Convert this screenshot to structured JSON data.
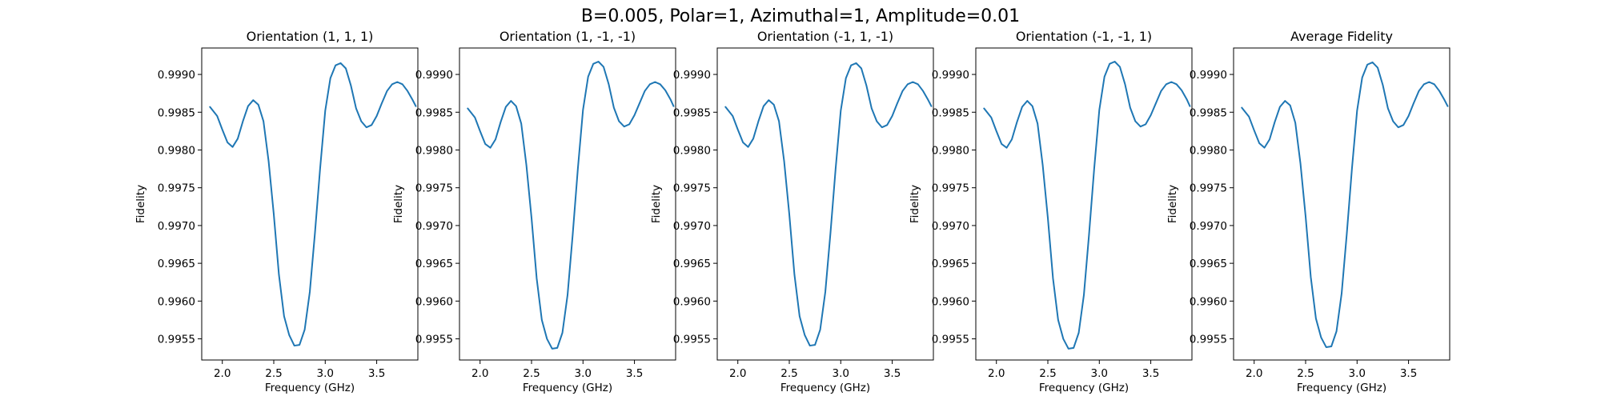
{
  "figure": {
    "title": "B=0.005, Polar=1, Azimuthal=1, Amplitude=0.01"
  },
  "colors": {
    "line": "#1f77b4",
    "axes": "#000000",
    "background": "#ffffff"
  },
  "chart_data": [
    {
      "type": "line",
      "title": "Orientation (1, 1, 1)",
      "xlabel": "Frequency (GHz)",
      "ylabel": "Fidelity",
      "xlim": [
        1.8,
        3.9
      ],
      "ylim": [
        0.99522,
        0.99935
      ],
      "xticks": [
        2.0,
        2.5,
        3.0,
        3.5
      ],
      "xtick_labels": [
        "2.0",
        "2.5",
        "3.0",
        "3.5"
      ],
      "yticks": [
        0.9955,
        0.996,
        0.9965,
        0.997,
        0.9975,
        0.998,
        0.9985,
        0.999
      ],
      "ytick_labels": [
        "0.9955",
        "0.9960",
        "0.9965",
        "0.9970",
        "0.9975",
        "0.9980",
        "0.9985",
        "0.9990"
      ],
      "grid": false,
      "legend": "none",
      "series": [
        {
          "x": [
            1.88,
            1.95,
            2.0,
            2.05,
            2.1,
            2.15,
            2.2,
            2.25,
            2.3,
            2.35,
            2.4,
            2.45,
            2.5,
            2.55,
            2.6,
            2.65,
            2.7,
            2.75,
            2.8,
            2.85,
            2.9,
            2.95,
            3.0,
            3.05,
            3.1,
            3.15,
            3.2,
            3.25,
            3.3,
            3.35,
            3.4,
            3.45,
            3.5,
            3.55,
            3.6,
            3.65,
            3.7,
            3.75,
            3.8,
            3.85,
            3.88
          ],
          "y": [
            0.99857,
            0.99845,
            0.99827,
            0.9981,
            0.99804,
            0.99815,
            0.99838,
            0.99858,
            0.99866,
            0.9986,
            0.99838,
            0.99785,
            0.99715,
            0.99635,
            0.9958,
            0.99555,
            0.99541,
            0.99542,
            0.99562,
            0.99612,
            0.9969,
            0.99775,
            0.99852,
            0.99895,
            0.99912,
            0.99915,
            0.99908,
            0.99885,
            0.99855,
            0.99838,
            0.9983,
            0.99833,
            0.99845,
            0.99862,
            0.99878,
            0.99887,
            0.9989,
            0.99887,
            0.99878,
            0.99866,
            0.99858
          ]
        }
      ]
    },
    {
      "type": "line",
      "title": "Orientation (1, -1, -1)",
      "xlabel": "Frequency (GHz)",
      "ylabel": "Fidelity",
      "xlim": [
        1.8,
        3.9
      ],
      "ylim": [
        0.99522,
        0.99935
      ],
      "xticks": [
        2.0,
        2.5,
        3.0,
        3.5
      ],
      "xtick_labels": [
        "2.0",
        "2.5",
        "3.0",
        "3.5"
      ],
      "yticks": [
        0.9955,
        0.996,
        0.9965,
        0.997,
        0.9975,
        0.998,
        0.9985,
        0.999
      ],
      "ytick_labels": [
        "0.9955",
        "0.9960",
        "0.9965",
        "0.9970",
        "0.9975",
        "0.9980",
        "0.9985",
        "0.9990"
      ],
      "grid": false,
      "legend": "none",
      "series": [
        {
          "x": [
            1.88,
            1.95,
            2.0,
            2.05,
            2.1,
            2.15,
            2.2,
            2.25,
            2.3,
            2.35,
            2.4,
            2.45,
            2.5,
            2.55,
            2.6,
            2.65,
            2.7,
            2.75,
            2.8,
            2.85,
            2.9,
            2.95,
            3.0,
            3.05,
            3.1,
            3.15,
            3.2,
            3.25,
            3.3,
            3.35,
            3.4,
            3.45,
            3.5,
            3.55,
            3.6,
            3.65,
            3.7,
            3.75,
            3.8,
            3.85,
            3.88
          ],
          "y": [
            0.99855,
            0.99843,
            0.99825,
            0.99808,
            0.99803,
            0.99814,
            0.99837,
            0.99857,
            0.99865,
            0.99858,
            0.99835,
            0.9978,
            0.9971,
            0.9963,
            0.99575,
            0.9955,
            0.99537,
            0.99538,
            0.99558,
            0.99608,
            0.99688,
            0.99775,
            0.99853,
            0.99897,
            0.99914,
            0.99917,
            0.9991,
            0.99887,
            0.99856,
            0.99838,
            0.99831,
            0.99834,
            0.99846,
            0.99862,
            0.99878,
            0.99887,
            0.9989,
            0.99887,
            0.99879,
            0.99867,
            0.99858
          ]
        }
      ]
    },
    {
      "type": "line",
      "title": "Orientation (-1, 1, -1)",
      "xlabel": "Frequency (GHz)",
      "ylabel": "Fidelity",
      "xlim": [
        1.8,
        3.9
      ],
      "ylim": [
        0.99522,
        0.99935
      ],
      "xticks": [
        2.0,
        2.5,
        3.0,
        3.5
      ],
      "xtick_labels": [
        "2.0",
        "2.5",
        "3.0",
        "3.5"
      ],
      "yticks": [
        0.9955,
        0.996,
        0.9965,
        0.997,
        0.9975,
        0.998,
        0.9985,
        0.999
      ],
      "ytick_labels": [
        "0.9955",
        "0.9960",
        "0.9965",
        "0.9970",
        "0.9975",
        "0.9980",
        "0.9985",
        "0.9990"
      ],
      "grid": false,
      "legend": "none",
      "series": [
        {
          "x": [
            1.88,
            1.95,
            2.0,
            2.05,
            2.1,
            2.15,
            2.2,
            2.25,
            2.3,
            2.35,
            2.4,
            2.45,
            2.5,
            2.55,
            2.6,
            2.65,
            2.7,
            2.75,
            2.8,
            2.85,
            2.9,
            2.95,
            3.0,
            3.05,
            3.1,
            3.15,
            3.2,
            3.25,
            3.3,
            3.35,
            3.4,
            3.45,
            3.5,
            3.55,
            3.6,
            3.65,
            3.7,
            3.75,
            3.8,
            3.85,
            3.88
          ],
          "y": [
            0.99857,
            0.99845,
            0.99827,
            0.9981,
            0.99804,
            0.99815,
            0.99838,
            0.99858,
            0.99866,
            0.9986,
            0.99838,
            0.99785,
            0.99715,
            0.99635,
            0.9958,
            0.99555,
            0.99541,
            0.99542,
            0.99562,
            0.99612,
            0.9969,
            0.99775,
            0.99852,
            0.99895,
            0.99912,
            0.99915,
            0.99908,
            0.99885,
            0.99855,
            0.99838,
            0.9983,
            0.99833,
            0.99845,
            0.99862,
            0.99878,
            0.99887,
            0.9989,
            0.99887,
            0.99878,
            0.99866,
            0.99858
          ]
        }
      ]
    },
    {
      "type": "line",
      "title": "Orientation (-1, -1, 1)",
      "xlabel": "Frequency (GHz)",
      "ylabel": "Fidelity",
      "xlim": [
        1.8,
        3.9
      ],
      "ylim": [
        0.99522,
        0.99935
      ],
      "xticks": [
        2.0,
        2.5,
        3.0,
        3.5
      ],
      "xtick_labels": [
        "2.0",
        "2.5",
        "3.0",
        "3.5"
      ],
      "yticks": [
        0.9955,
        0.996,
        0.9965,
        0.997,
        0.9975,
        0.998,
        0.9985,
        0.999
      ],
      "ytick_labels": [
        "0.9955",
        "0.9960",
        "0.9965",
        "0.9970",
        "0.9975",
        "0.9980",
        "0.9985",
        "0.9990"
      ],
      "grid": false,
      "legend": "none",
      "series": [
        {
          "x": [
            1.88,
            1.95,
            2.0,
            2.05,
            2.1,
            2.15,
            2.2,
            2.25,
            2.3,
            2.35,
            2.4,
            2.45,
            2.5,
            2.55,
            2.6,
            2.65,
            2.7,
            2.75,
            2.8,
            2.85,
            2.9,
            2.95,
            3.0,
            3.05,
            3.1,
            3.15,
            3.2,
            3.25,
            3.3,
            3.35,
            3.4,
            3.45,
            3.5,
            3.55,
            3.6,
            3.65,
            3.7,
            3.75,
            3.8,
            3.85,
            3.88
          ],
          "y": [
            0.99855,
            0.99843,
            0.99825,
            0.99808,
            0.99803,
            0.99814,
            0.99837,
            0.99857,
            0.99865,
            0.99858,
            0.99835,
            0.9978,
            0.9971,
            0.9963,
            0.99575,
            0.9955,
            0.99537,
            0.99538,
            0.99558,
            0.99608,
            0.99688,
            0.99775,
            0.99853,
            0.99897,
            0.99914,
            0.99917,
            0.9991,
            0.99887,
            0.99856,
            0.99838,
            0.99831,
            0.99834,
            0.99846,
            0.99862,
            0.99878,
            0.99887,
            0.9989,
            0.99887,
            0.99879,
            0.99867,
            0.99858
          ]
        }
      ]
    },
    {
      "type": "line",
      "title": "Average Fidelity",
      "xlabel": "Frequency (GHz)",
      "ylabel": "Fidelity",
      "xlim": [
        1.8,
        3.9
      ],
      "ylim": [
        0.99522,
        0.99935
      ],
      "xticks": [
        2.0,
        2.5,
        3.0,
        3.5
      ],
      "xtick_labels": [
        "2.0",
        "2.5",
        "3.0",
        "3.5"
      ],
      "yticks": [
        0.9955,
        0.996,
        0.9965,
        0.997,
        0.9975,
        0.998,
        0.9985,
        0.999
      ],
      "ytick_labels": [
        "0.9955",
        "0.9960",
        "0.9965",
        "0.9970",
        "0.9975",
        "0.9980",
        "0.9985",
        "0.9990"
      ],
      "grid": false,
      "legend": "none",
      "series": [
        {
          "x": [
            1.88,
            1.95,
            2.0,
            2.05,
            2.1,
            2.15,
            2.2,
            2.25,
            2.3,
            2.35,
            2.4,
            2.45,
            2.5,
            2.55,
            2.6,
            2.65,
            2.7,
            2.75,
            2.8,
            2.85,
            2.9,
            2.95,
            3.0,
            3.05,
            3.1,
            3.15,
            3.2,
            3.25,
            3.3,
            3.35,
            3.4,
            3.45,
            3.5,
            3.55,
            3.6,
            3.65,
            3.7,
            3.75,
            3.8,
            3.85,
            3.88
          ],
          "y": [
            0.99856,
            0.99844,
            0.99826,
            0.99809,
            0.99803,
            0.99814,
            0.99837,
            0.99857,
            0.99865,
            0.99859,
            0.99836,
            0.99782,
            0.99712,
            0.99632,
            0.99577,
            0.99552,
            0.99539,
            0.9954,
            0.9956,
            0.9961,
            0.99689,
            0.99775,
            0.99852,
            0.99896,
            0.99913,
            0.99916,
            0.99909,
            0.99886,
            0.99855,
            0.99838,
            0.9983,
            0.99833,
            0.99845,
            0.99862,
            0.99878,
            0.99887,
            0.9989,
            0.99887,
            0.99878,
            0.99866,
            0.99858
          ]
        }
      ]
    }
  ]
}
